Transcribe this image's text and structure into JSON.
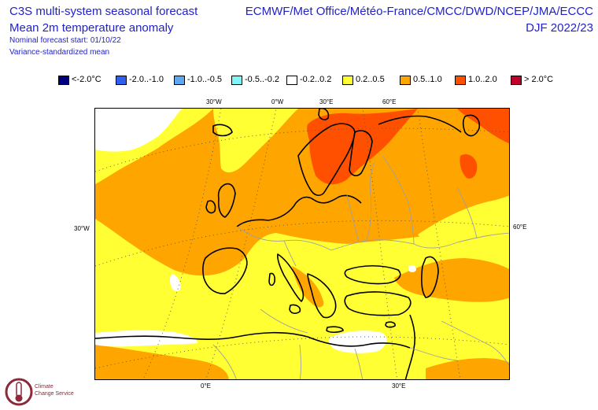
{
  "header": {
    "left_line1": "C3S multi-system seasonal forecast",
    "left_line2": "Mean 2m temperature anomaly",
    "left_line3": "Nominal forecast start: 01/10/22",
    "left_line4": "Variance-standardized mean",
    "right_line1": "ECMWF/Met Office/Météo-France/CMCC/DWD/NCEP/JMA/ECCC",
    "right_line2": "DJF 2022/23"
  },
  "legend": {
    "items": [
      {
        "label": "<-2.0°C",
        "color": "#00007f"
      },
      {
        "label": "-2.0..-1.0",
        "color": "#2f5ef0"
      },
      {
        "label": "-1.0..-0.5",
        "color": "#5ea8f0"
      },
      {
        "label": "-0.5..-0.2",
        "color": "#7ff5f5"
      },
      {
        "label": "-0.2..0.2",
        "color": "#ffffff"
      },
      {
        "label": "0.2..0.5",
        "color": "#ffff33"
      },
      {
        "label": "0.5..1.0",
        "color": "#ffa500"
      },
      {
        "label": "1.0..2.0",
        "color": "#ff5000"
      },
      {
        "label": "> 2.0°C",
        "color": "#c0002b"
      }
    ]
  },
  "map": {
    "top_ticks": [
      "30°W",
      "0°W",
      "30°E",
      "60°E"
    ],
    "bottom_ticks": [
      "0°E",
      "30°E"
    ],
    "left_ticks": [
      "30°W"
    ],
    "right_ticks": [
      "60°E"
    ],
    "colors": {
      "white": "#ffffff",
      "yellow": "#ffff33",
      "orange": "#ffa500",
      "redorange": "#ff5000",
      "coast": "#000000",
      "border": "#a0a0a0",
      "grid": "#555555"
    }
  },
  "logo": {
    "line1": "Climate",
    "line2": "Change Service"
  }
}
